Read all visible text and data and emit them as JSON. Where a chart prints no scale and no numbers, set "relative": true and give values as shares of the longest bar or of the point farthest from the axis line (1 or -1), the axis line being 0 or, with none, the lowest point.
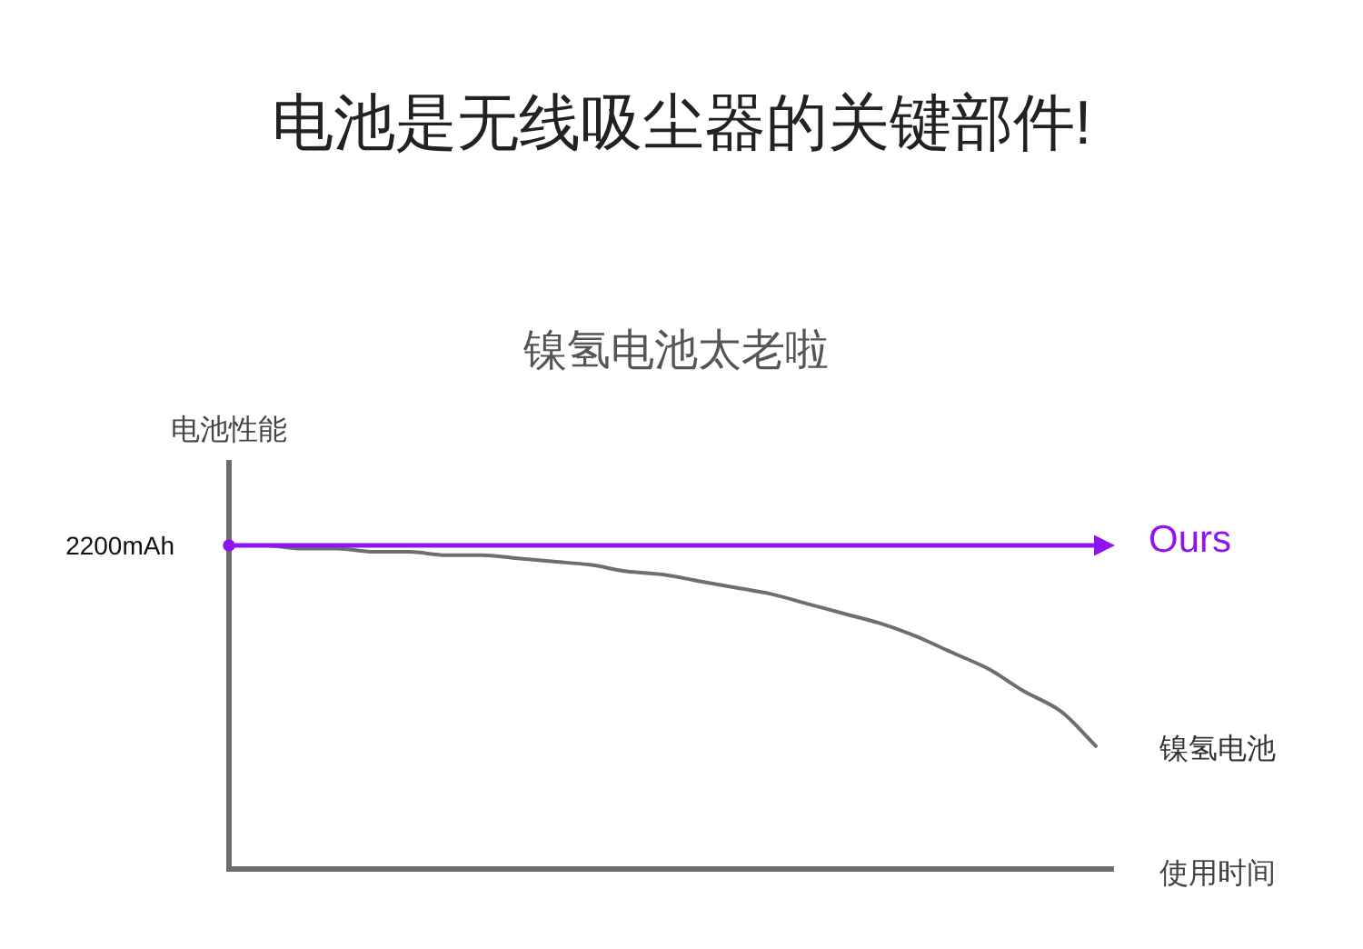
{
  "chart_data": {
    "type": "line",
    "title": "电池是无线吸尘器的关键部件!",
    "subtitle": "镍氢电池太老啦",
    "xlabel": "使用时间",
    "ylabel": "电池性能",
    "annotations": [
      "2200mAh"
    ],
    "relative": true,
    "categories": [
      null,
      null,
      null,
      null,
      null,
      null,
      null,
      null,
      null,
      null,
      null,
      null,
      null,
      null,
      null,
      null,
      null,
      null,
      null,
      null,
      null,
      null,
      null,
      null,
      null
    ],
    "series": [
      {
        "name": "Ours",
        "color": "#8f14f0",
        "values": [
          1,
          1,
          1,
          1,
          1,
          1,
          1,
          1,
          1,
          1,
          1,
          1,
          1,
          1,
          1,
          1,
          1,
          1,
          1,
          1,
          1,
          1,
          1,
          1,
          1
        ]
      },
      {
        "name": "镍氢电池",
        "color": "#6e6e6e",
        "values": [
          1,
          1,
          0.99,
          0.99,
          0.98,
          0.98,
          0.97,
          0.97,
          0.96,
          0.95,
          0.94,
          0.92,
          0.91,
          0.89,
          0.87,
          0.85,
          0.82,
          0.79,
          0.76,
          0.72,
          0.67,
          0.62,
          0.55,
          0.49,
          0.38
        ]
      }
    ]
  }
}
